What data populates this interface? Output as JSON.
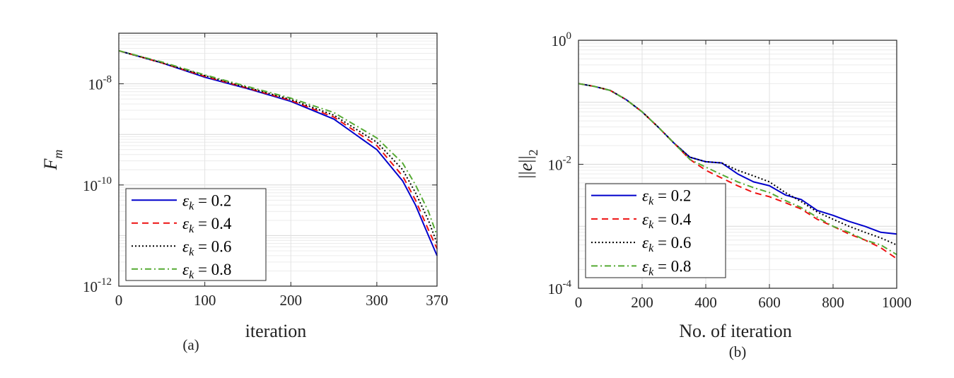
{
  "chart_data": [
    {
      "type": "line",
      "panel_caption": "(a)",
      "xlabel": "iteration",
      "ylabel": "F_m",
      "yscale": "log",
      "xlim": [
        0,
        370
      ],
      "ylim": [
        1e-12,
        1e-07
      ],
      "xticks": [
        0,
        100,
        200,
        300,
        370
      ],
      "yticks": [
        {
          "value": 1e-08,
          "base": "10",
          "exp": "-8"
        },
        {
          "value": 1e-10,
          "base": "10",
          "exp": "-10"
        },
        {
          "value": 1e-12,
          "base": "10",
          "exp": "-12"
        }
      ],
      "grid": true,
      "legend_position": "bottom-left",
      "series": [
        {
          "name": "ε_k = 0.2",
          "color": "#0000cc",
          "dash": "solid",
          "x": [
            0,
            50,
            100,
            150,
            200,
            250,
            300,
            330,
            345,
            360,
            370
          ],
          "y": [
            4.5e-08,
            2.6e-08,
            1.35e-08,
            8e-09,
            4.5e-09,
            2e-09,
            5e-10,
            1.2e-10,
            4e-11,
            1e-11,
            4e-12
          ]
        },
        {
          "name": "ε_k = 0.4",
          "color": "#ee1111",
          "dash": "dashed",
          "x": [
            0,
            50,
            100,
            150,
            200,
            250,
            300,
            330,
            345,
            360,
            370
          ],
          "y": [
            4.5e-08,
            2.6e-08,
            1.4e-08,
            8.2e-09,
            4.7e-09,
            2.2e-09,
            6e-10,
            1.5e-10,
            5e-11,
            1.3e-11,
            5.5e-12
          ]
        },
        {
          "name": "ε_k = 0.6",
          "color": "#000000",
          "dash": "dotted",
          "x": [
            0,
            50,
            100,
            150,
            200,
            250,
            300,
            330,
            345,
            360,
            370
          ],
          "y": [
            4.5e-08,
            2.6e-08,
            1.45e-08,
            8.4e-09,
            4.9e-09,
            2.4e-09,
            7e-10,
            2e-10,
            7e-11,
            2e-11,
            7e-12
          ]
        },
        {
          "name": "ε_k = 0.8",
          "color": "#55aa33",
          "dash": "dashdot",
          "x": [
            0,
            50,
            100,
            150,
            200,
            250,
            300,
            330,
            345,
            360,
            370
          ],
          "y": [
            4.5e-08,
            2.7e-08,
            1.5e-08,
            8.8e-09,
            5.2e-09,
            2.7e-09,
            8.5e-10,
            2.7e-10,
            1e-10,
            3e-11,
            1e-11
          ]
        }
      ]
    },
    {
      "type": "line",
      "panel_caption": "(b)",
      "xlabel": "No. of iteration",
      "ylabel": "||e||_2",
      "yscale": "log",
      "xlim": [
        0,
        1000
      ],
      "ylim": [
        0.0001,
        1
      ],
      "xticks": [
        0,
        200,
        400,
        600,
        800,
        1000
      ],
      "yticks": [
        {
          "value": 1,
          "base": "10",
          "exp": "0"
        },
        {
          "value": 0.01,
          "base": "10",
          "exp": "-2"
        },
        {
          "value": 0.0001,
          "base": "10",
          "exp": "-4"
        }
      ],
      "grid": true,
      "legend_position": "bottom-left",
      "series": [
        {
          "name": "ε_k = 0.2",
          "color": "#0000cc",
          "dash": "solid",
          "x": [
            0,
            50,
            100,
            150,
            200,
            250,
            300,
            350,
            400,
            450,
            500,
            550,
            600,
            650,
            700,
            750,
            800,
            850,
            900,
            950,
            1000
          ],
          "y": [
            0.2,
            0.18,
            0.155,
            0.11,
            0.07,
            0.04,
            0.022,
            0.013,
            0.011,
            0.0105,
            0.007,
            0.0052,
            0.0045,
            0.0032,
            0.0027,
            0.0018,
            0.0015,
            0.0012,
            0.001,
            0.0008,
            0.00075
          ]
        },
        {
          "name": "ε_k = 0.4",
          "color": "#ee1111",
          "dash": "dashed",
          "x": [
            0,
            50,
            100,
            150,
            200,
            250,
            300,
            350,
            400,
            450,
            500,
            550,
            600,
            650,
            700,
            750,
            800,
            850,
            900,
            950,
            1000
          ],
          "y": [
            0.2,
            0.18,
            0.155,
            0.11,
            0.07,
            0.04,
            0.022,
            0.012,
            0.008,
            0.006,
            0.0045,
            0.0035,
            0.003,
            0.0024,
            0.0019,
            0.0013,
            0.001,
            0.00075,
            0.0006,
            0.00045,
            0.0003
          ]
        },
        {
          "name": "ε_k = 0.6",
          "color": "#000000",
          "dash": "dotted",
          "x": [
            0,
            50,
            100,
            150,
            200,
            250,
            300,
            350,
            400,
            450,
            500,
            550,
            600,
            650,
            700,
            750,
            800,
            850,
            900,
            950,
            1000
          ],
          "y": [
            0.2,
            0.18,
            0.155,
            0.11,
            0.07,
            0.04,
            0.022,
            0.013,
            0.011,
            0.0105,
            0.008,
            0.0065,
            0.0052,
            0.0035,
            0.0025,
            0.0017,
            0.0013,
            0.001,
            0.0008,
            0.00065,
            0.0005
          ]
        },
        {
          "name": "ε_k = 0.8",
          "color": "#55aa33",
          "dash": "dashdot",
          "x": [
            0,
            50,
            100,
            150,
            200,
            250,
            300,
            350,
            400,
            450,
            500,
            550,
            600,
            650,
            700,
            750,
            800,
            850,
            900,
            950,
            1000
          ],
          "y": [
            0.2,
            0.18,
            0.155,
            0.11,
            0.07,
            0.04,
            0.022,
            0.012,
            0.009,
            0.0068,
            0.0052,
            0.0042,
            0.0035,
            0.0026,
            0.002,
            0.0014,
            0.001,
            0.0008,
            0.0006,
            0.0005,
            0.00035
          ]
        }
      ]
    }
  ]
}
